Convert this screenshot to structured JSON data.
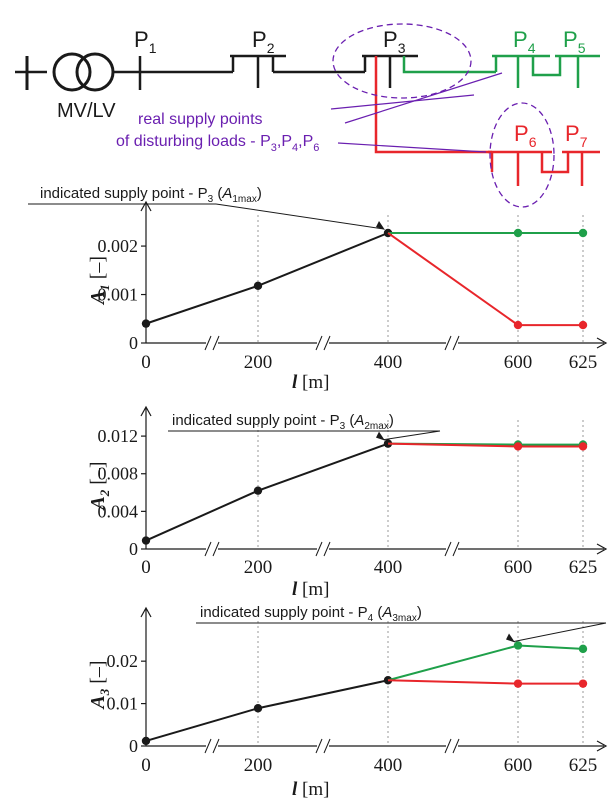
{
  "diagram": {
    "colors": {
      "black": "#1a1a1a",
      "green": "#1fa04a",
      "red": "#e8262b",
      "purple": "#6a1fb0"
    },
    "transformer_label": "MV/LV",
    "points": {
      "p1": {
        "base": "P",
        "sub": "1"
      },
      "p2": {
        "base": "P",
        "sub": "2"
      },
      "p3": {
        "base": "P",
        "sub": "3"
      },
      "p4": {
        "base": "P",
        "sub": "4"
      },
      "p5": {
        "base": "P",
        "sub": "5"
      },
      "p6": {
        "base": "P",
        "sub": "6"
      },
      "p7": {
        "base": "P",
        "sub": "7"
      }
    },
    "annotation": {
      "line1": "real supply points",
      "line2_prefix": "of disturbing loads - P",
      "sub3": "3",
      "sep1": ",P",
      "sub4": "4",
      "sep2": ",P",
      "sub6": "6"
    }
  },
  "chart_data": [
    {
      "type": "line",
      "id": "A1",
      "ylabel": {
        "base": "A",
        "sub": "1",
        "unit": "[–]"
      },
      "xlabel": {
        "base": "l",
        "unit": "[m]"
      },
      "categories": [
        "0",
        "200",
        "400",
        "600",
        "625"
      ],
      "ylim": [
        0,
        0.0026
      ],
      "yticks": [
        {
          "value": 0,
          "label": "0"
        },
        {
          "value": 0.001,
          "label": "0.001"
        },
        {
          "value": 0.002,
          "label": "0.002"
        }
      ],
      "series": [
        {
          "color": "#1a1a1a",
          "x": [
            "0",
            "200",
            "400"
          ],
          "values": [
            0.0004,
            0.00118,
            0.00227
          ]
        },
        {
          "color": "#1fa04a",
          "x": [
            "400",
            "600",
            "625"
          ],
          "values": [
            0.00227,
            0.00227,
            0.00227
          ]
        },
        {
          "color": "#e8262b",
          "x": [
            "400",
            "600",
            "625"
          ],
          "values": [
            0.00227,
            0.00037,
            0.00037
          ]
        }
      ],
      "annotation": {
        "text_prefix": "indicated supply point - P",
        "sub_point": "3",
        "open": " (",
        "var": "A",
        "var_sub": "1max",
        "close": ")",
        "target_x": "400",
        "target_value": 0.00227
      }
    },
    {
      "type": "line",
      "id": "A2",
      "ylabel": {
        "base": "A",
        "sub": "2",
        "unit": "[–]"
      },
      "xlabel": {
        "base": "l",
        "unit": "[m]"
      },
      "categories": [
        "0",
        "200",
        "400",
        "600",
        "625"
      ],
      "ylim": [
        0,
        0.0135
      ],
      "yticks": [
        {
          "value": 0,
          "label": "0"
        },
        {
          "value": 0.004,
          "label": "0.004"
        },
        {
          "value": 0.008,
          "label": "0.008"
        },
        {
          "value": 0.012,
          "label": "0.012"
        }
      ],
      "series": [
        {
          "color": "#1a1a1a",
          "x": [
            "0",
            "200",
            "400"
          ],
          "values": [
            0.0009,
            0.0062,
            0.0112
          ]
        },
        {
          "color": "#1fa04a",
          "x": [
            "400",
            "600",
            "625"
          ],
          "values": [
            0.0112,
            0.0111,
            0.0111
          ]
        },
        {
          "color": "#e8262b",
          "x": [
            "400",
            "600",
            "625"
          ],
          "values": [
            0.0112,
            0.0109,
            0.0109
          ]
        }
      ],
      "annotation": {
        "text_prefix": "indicated supply point - P",
        "sub_point": "3",
        "open": " (",
        "var": "A",
        "var_sub": "2max",
        "close": ")",
        "target_x": "400",
        "target_value": 0.0112
      }
    },
    {
      "type": "line",
      "id": "A3",
      "ylabel": {
        "base": "A",
        "sub": "3",
        "unit": "[–]"
      },
      "xlabel": {
        "base": "l",
        "unit": "[m]"
      },
      "categories": [
        "0",
        "200",
        "400",
        "600",
        "625"
      ],
      "ylim": [
        0,
        0.029
      ],
      "yticks": [
        {
          "value": 0,
          "label": "0"
        },
        {
          "value": 0.01,
          "label": "0.01"
        },
        {
          "value": 0.02,
          "label": "0.02"
        }
      ],
      "series": [
        {
          "color": "#1a1a1a",
          "x": [
            "0",
            "200",
            "400"
          ],
          "values": [
            0.0012,
            0.0089,
            0.0155
          ]
        },
        {
          "color": "#1fa04a",
          "x": [
            "400",
            "600",
            "625"
          ],
          "values": [
            0.0155,
            0.0237,
            0.0229
          ]
        },
        {
          "color": "#e8262b",
          "x": [
            "400",
            "600",
            "625"
          ],
          "values": [
            0.0155,
            0.0147,
            0.0147
          ]
        }
      ],
      "annotation": {
        "text_prefix": "indicated supply point - P",
        "sub_point": "4",
        "open": " (",
        "var": "A",
        "var_sub": "3max",
        "close": ")",
        "target_x": "600",
        "target_value": 0.0237
      }
    }
  ]
}
